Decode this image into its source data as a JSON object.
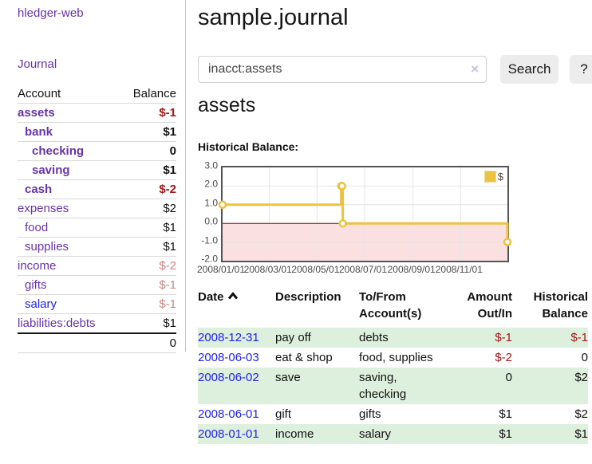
{
  "app": {
    "title": "hledger-web"
  },
  "nav": {
    "journal": "Journal"
  },
  "sidebar": {
    "headers": {
      "account": "Account",
      "balance": "Balance"
    },
    "accounts": [
      {
        "name": "assets",
        "balance": "$-1"
      },
      {
        "name": "bank",
        "balance": "$1"
      },
      {
        "name": "checking",
        "balance": "0"
      },
      {
        "name": "saving",
        "balance": "$1"
      },
      {
        "name": "cash",
        "balance": "$-2"
      },
      {
        "name": "expenses",
        "balance": "$2"
      },
      {
        "name": "food",
        "balance": "$1"
      },
      {
        "name": "supplies",
        "balance": "$1"
      },
      {
        "name": "income",
        "balance": "$-2"
      },
      {
        "name": "gifts",
        "balance": "$-1"
      },
      {
        "name": "salary",
        "balance": "$-1"
      },
      {
        "name": "liabilities:debts",
        "balance": "$1"
      }
    ],
    "total": "0"
  },
  "header": {
    "title": "sample.journal"
  },
  "search": {
    "value": "inacct:assets",
    "clear_icon": "×",
    "button": "Search",
    "help": "?"
  },
  "account_page": {
    "heading": "assets",
    "chart_title": "Historical Balance:"
  },
  "chart_data": {
    "type": "line",
    "title": "Historical Balance",
    "series": [
      {
        "name": "$",
        "color": "#edc240",
        "steps": true,
        "points": [
          [
            "2008-01-01",
            1
          ],
          [
            "2008-06-01",
            2
          ],
          [
            "2008-06-02",
            2
          ],
          [
            "2008-06-03",
            0
          ],
          [
            "2008-12-31",
            -1
          ]
        ]
      }
    ],
    "x_range": [
      "2008-01-01",
      "2008-12-31"
    ],
    "ylim": [
      -2,
      3
    ],
    "y_ticks": [
      {
        "v": 3,
        "label": "3.0"
      },
      {
        "v": 2,
        "label": "2.0"
      },
      {
        "v": 1,
        "label": "1.0"
      },
      {
        "v": 0,
        "label": "0.0"
      },
      {
        "v": -1,
        "label": "-1.0"
      },
      {
        "v": -2,
        "label": "-2.0"
      }
    ],
    "x_ticks": [
      {
        "d": "2008-01-01",
        "label": "2008/01/01"
      },
      {
        "d": "2008-03-01",
        "label": "2008/03/01"
      },
      {
        "d": "2008-05-01",
        "label": "2008/05/01"
      },
      {
        "d": "2008-07-01",
        "label": "2008/07/01"
      },
      {
        "d": "2008-09-01",
        "label": "2008/09/01"
      },
      {
        "d": "2008-11-01",
        "label": "2008/11/01"
      }
    ],
    "legend": {
      "label": "$",
      "position": "top-right"
    },
    "grid": true,
    "negative_region_color": "#fbe0e1",
    "zero_line_color": "#8b0000",
    "grid_color": "#e4e4e4"
  },
  "register": {
    "headers": {
      "date": "Date",
      "description": "Description",
      "account": "To/From Account(s)",
      "amount": "Amount Out/In",
      "balance": "Historical Balance",
      "sort_indicator": "asc"
    },
    "rows": [
      {
        "date": "2008-12-31",
        "description": "pay off",
        "accounts": "debts",
        "amount": "$-1",
        "balance": "$-1"
      },
      {
        "date": "2008-06-03",
        "description": "eat & shop",
        "accounts": "food, supplies",
        "amount": "$-2",
        "balance": "0"
      },
      {
        "date": "2008-06-02",
        "description": "save",
        "accounts": "saving, checking",
        "amount": "0",
        "balance": "$2"
      },
      {
        "date": "2008-06-01",
        "description": "gift",
        "accounts": "gifts",
        "amount": "$1",
        "balance": "$2"
      },
      {
        "date": "2008-01-01",
        "description": "income",
        "accounts": "salary",
        "amount": "$1",
        "balance": "$1"
      }
    ]
  },
  "colors": {
    "link_purple": "#6633aa",
    "link_blue": "#2222ee",
    "negative_strong": "#a21515",
    "negative_soft": "#c98585",
    "row_stripe_green": "#ddefdd",
    "chart_series_gold": "#edc240",
    "chart_border": "#545454"
  }
}
